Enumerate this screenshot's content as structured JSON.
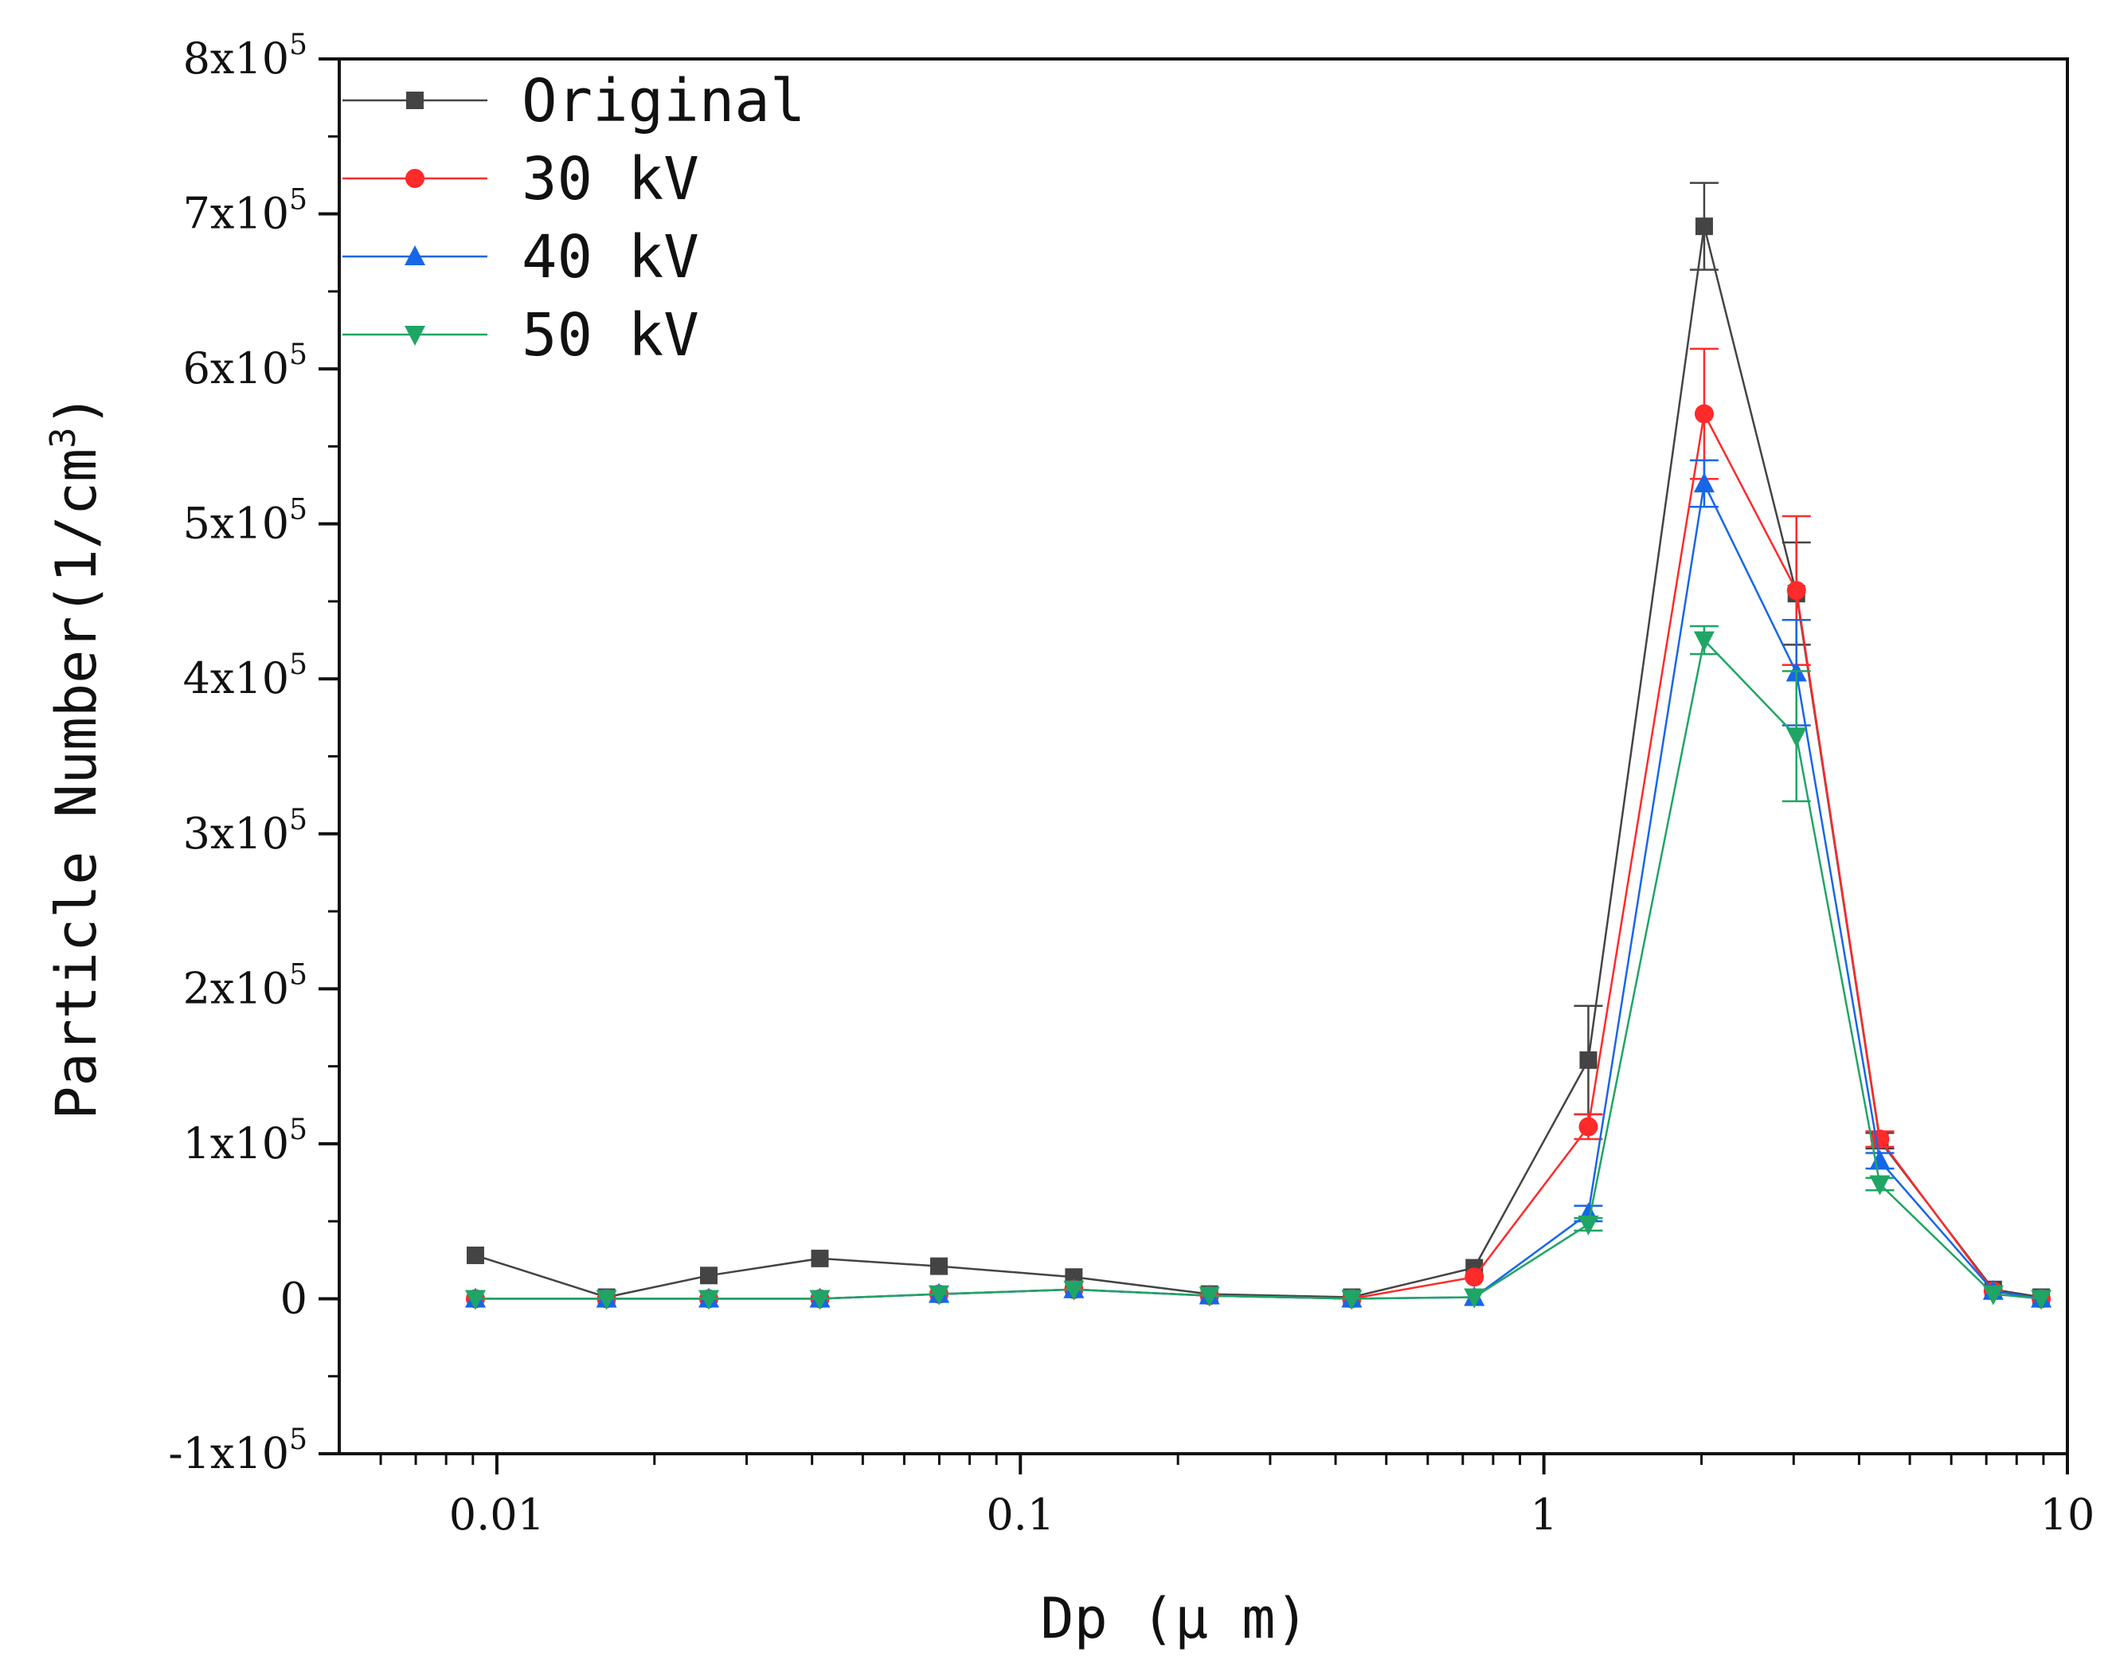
{
  "chart_data": {
    "type": "line",
    "x_scale": "log",
    "xlabel": "Dp (μ m)",
    "ylabel": "Particle Number(1/cm",
    "ylabel_sup": "3",
    "ylabel_end": ")",
    "xlim": [
      0.005,
      10
    ],
    "ylim": [
      -100000,
      800000
    ],
    "x_ticks": [
      {
        "value": 0.01,
        "label": "0.01"
      },
      {
        "value": 0.1,
        "label": "0.1"
      },
      {
        "value": 1,
        "label": "1"
      },
      {
        "value": 10,
        "label": "10"
      }
    ],
    "y_ticks": [
      {
        "value": 800000,
        "mant": "8x10",
        "exp": "5"
      },
      {
        "value": 700000,
        "mant": "7x10",
        "exp": "5"
      },
      {
        "value": 600000,
        "mant": "6x10",
        "exp": "5"
      },
      {
        "value": 500000,
        "mant": "5x10",
        "exp": "5"
      },
      {
        "value": 400000,
        "mant": "4x10",
        "exp": "5"
      },
      {
        "value": 300000,
        "mant": "3x10",
        "exp": "5"
      },
      {
        "value": 200000,
        "mant": "2x10",
        "exp": "5"
      },
      {
        "value": 100000,
        "mant": "1x10",
        "exp": "5"
      },
      {
        "value": 0,
        "mant": "0",
        "exp": ""
      },
      {
        "value": -100000,
        "mant": "-1x10",
        "exp": "5"
      }
    ],
    "x": [
      0.0091,
      0.0162,
      0.0254,
      0.0414,
      0.0699,
      0.1265,
      0.2297,
      0.4295,
      0.7363,
      1.2159,
      2.0241,
      3.0364,
      4.3826,
      7.2162,
      8.911
    ],
    "legend_position": "top-left",
    "series": [
      {
        "name": "Original",
        "color": "#444444",
        "marker": "square",
        "values": [
          28000,
          1000,
          15000,
          26000,
          21000,
          14000,
          3000,
          1000,
          20000,
          154000,
          692000,
          455000,
          102000,
          6000,
          1000
        ],
        "errors": [
          0,
          0,
          0,
          0,
          0,
          0,
          0,
          0,
          0,
          35000,
          28000,
          33000,
          5000,
          0,
          0
        ]
      },
      {
        "name": "30 kV",
        "color": "#ff2a2a",
        "marker": "circle",
        "values": [
          0,
          0,
          0,
          0,
          3000,
          6000,
          2000,
          0,
          14000,
          111000,
          571000,
          457000,
          103000,
          5000,
          0
        ],
        "errors": [
          0,
          0,
          0,
          0,
          0,
          0,
          0,
          0,
          0,
          8000,
          42000,
          48000,
          5000,
          0,
          0
        ]
      },
      {
        "name": "40 kV",
        "color": "#1766e8",
        "marker": "triangle-up",
        "values": [
          0,
          0,
          0,
          0,
          3000,
          6000,
          2000,
          0,
          1000,
          55000,
          526000,
          404000,
          89000,
          5000,
          0
        ],
        "errors": [
          0,
          0,
          0,
          0,
          0,
          0,
          0,
          0,
          0,
          5000,
          15000,
          34000,
          5000,
          0,
          0
        ]
      },
      {
        "name": "50 kV",
        "color": "#1fa565",
        "marker": "triangle-down",
        "values": [
          0,
          0,
          0,
          0,
          3000,
          6000,
          2000,
          0,
          1000,
          48000,
          425000,
          363000,
          74000,
          3000,
          0
        ],
        "errors": [
          0,
          0,
          0,
          0,
          0,
          0,
          0,
          0,
          0,
          4000,
          9000,
          42000,
          4000,
          0,
          0
        ]
      }
    ]
  }
}
